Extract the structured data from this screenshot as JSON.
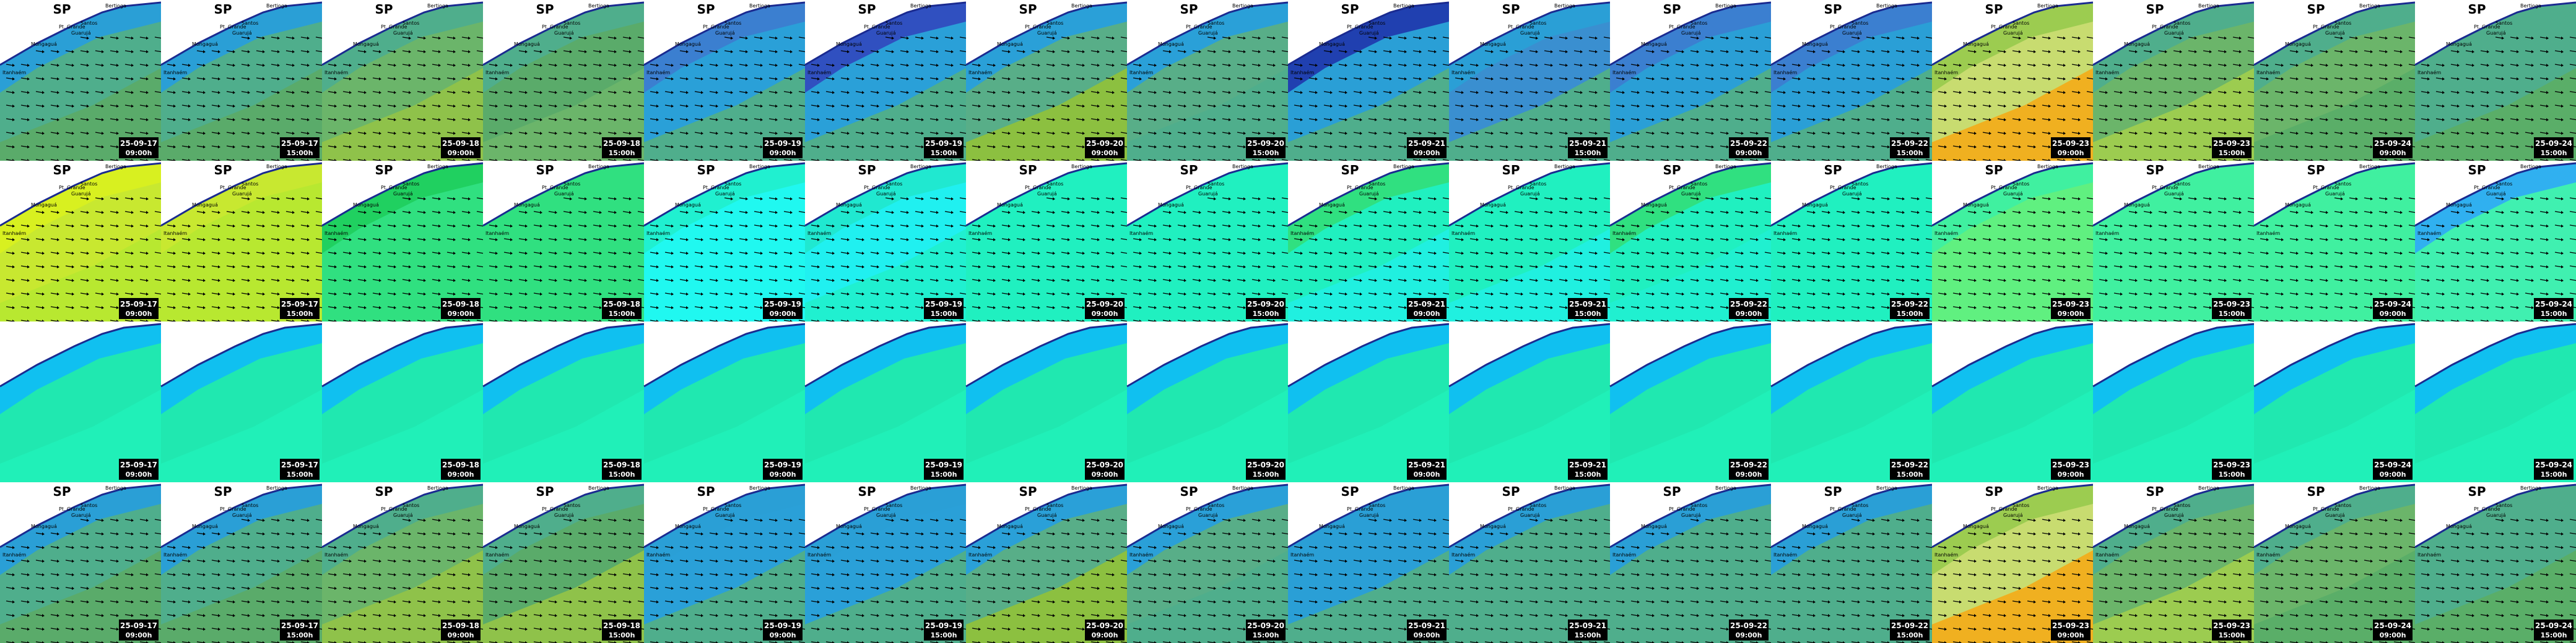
{
  "title": "SP",
  "map_labels": [
    "Bertioga",
    "Pt. Grande",
    "Santos",
    "Guarujá",
    "Mongaguá",
    "Itanhaém"
  ],
  "columns": [
    {
      "date": "25-09-17",
      "time": "09:00h"
    },
    {
      "date": "25-09-17",
      "time": "15:00h"
    },
    {
      "date": "25-09-18",
      "time": "09:00h"
    },
    {
      "date": "25-09-18",
      "time": "15:00h"
    },
    {
      "date": "25-09-19",
      "time": "09:00h"
    },
    {
      "date": "25-09-19",
      "time": "15:00h"
    },
    {
      "date": "25-09-20",
      "time": "09:00h"
    },
    {
      "date": "25-09-20",
      "time": "15:00h"
    },
    {
      "date": "25-09-21",
      "time": "09:00h"
    },
    {
      "date": "25-09-21",
      "time": "15:00h"
    },
    {
      "date": "25-09-22",
      "time": "09:00h"
    },
    {
      "date": "25-09-22",
      "time": "15:00h"
    },
    {
      "date": "25-09-23",
      "time": "09:00h"
    },
    {
      "date": "25-09-23",
      "time": "15:00h"
    },
    {
      "date": "25-09-24",
      "time": "09:00h"
    },
    {
      "date": "25-09-24",
      "time": "15:00h"
    }
  ],
  "rows": [
    {
      "arrows": true,
      "labels": true,
      "colors": [
        [
          "#5aab6a",
          "#4fae8c",
          "#2a9fd6"
        ],
        [
          "#5aab6a",
          "#4fae8c",
          "#2a9fd6"
        ],
        [
          "#8fc24a",
          "#6bb56a",
          "#4fae8c"
        ],
        [
          "#6bb56a",
          "#5aab6a",
          "#4fae8c"
        ],
        [
          "#4fae8c",
          "#2aa0d8",
          "#3b7fd0"
        ],
        [
          "#4fae8c",
          "#2aa0d8",
          "#3050c0"
        ],
        [
          "#8cc040",
          "#58ae88",
          "#2aa0d8"
        ],
        [
          "#4fae8c",
          "#58ae88",
          "#2aa0d8"
        ],
        [
          "#4fae8c",
          "#2a9fd6",
          "#2040b0"
        ],
        [
          "#4fae8c",
          "#3a8fd0",
          "#2a9fd6"
        ],
        [
          "#4fae8c",
          "#2a9fd6",
          "#3b7fd0"
        ],
        [
          "#4fae8c",
          "#2a9fd6",
          "#3b7fd0"
        ],
        [
          "#f0b020",
          "#c8dc70",
          "#9ccc50"
        ],
        [
          "#9ccc50",
          "#6bb56a",
          "#4fae8c"
        ],
        [
          "#5aae68",
          "#6bb56a",
          "#4fae8c"
        ],
        [
          "#5aae68",
          "#4fae8c",
          "#4fae8c"
        ]
      ]
    },
    {
      "arrows": true,
      "labels": true,
      "colors": [
        [
          "#b8e830",
          "#c8e830",
          "#d8f020"
        ],
        [
          "#b8e830",
          "#b8e830",
          "#c8e830"
        ],
        [
          "#30e080",
          "#30e080",
          "#20d060"
        ],
        [
          "#30e080",
          "#30e080",
          "#30e080"
        ],
        [
          "#20f8f0",
          "#20f8f0",
          "#20f0d0"
        ],
        [
          "#20f0d0",
          "#20f0f0",
          "#20e8d0"
        ],
        [
          "#20f0c0",
          "#20f0c0",
          "#20f0c0"
        ],
        [
          "#20f0c0",
          "#20f0c0",
          "#20f0c0"
        ],
        [
          "#20f0e0",
          "#20f0c0",
          "#30e080"
        ],
        [
          "#20f0e0",
          "#20f0c0",
          "#20f0c0"
        ],
        [
          "#20f0d0",
          "#20f0c0",
          "#30e080"
        ],
        [
          "#20f0c0",
          "#20f0c0",
          "#20f0c0"
        ],
        [
          "#60f080",
          "#60f080",
          "#40f0a0"
        ],
        [
          "#40f0a0",
          "#40f0a0",
          "#40f0a0"
        ],
        [
          "#40f0a0",
          "#40f0a0",
          "#40f0a0"
        ],
        [
          "#40f0b0",
          "#40f0b0",
          "#30b0f0"
        ]
      ]
    },
    {
      "arrows": false,
      "labels": false,
      "colors": [
        [
          "#20f0b8",
          "#20e8b0",
          "#10c0f0"
        ],
        [
          "#20f0b8",
          "#20e8b0",
          "#10c0f0"
        ],
        [
          "#20f0b8",
          "#20e8b0",
          "#10c0f0"
        ],
        [
          "#20f0b8",
          "#20e8b0",
          "#10c0f0"
        ],
        [
          "#20f0b8",
          "#20e8b0",
          "#10c0f0"
        ],
        [
          "#20f0b8",
          "#20e8b0",
          "#10c0f0"
        ],
        [
          "#20f0b8",
          "#20e8b0",
          "#10c0f0"
        ],
        [
          "#20f0b8",
          "#20e8b0",
          "#10c0f0"
        ],
        [
          "#20f0b8",
          "#20e8b0",
          "#10c0f0"
        ],
        [
          "#20f0b8",
          "#20e8b0",
          "#10c0f0"
        ],
        [
          "#20f0b8",
          "#20e8b0",
          "#10c0f0"
        ],
        [
          "#20f0b8",
          "#20e8b0",
          "#10c0f0"
        ],
        [
          "#20f0b8",
          "#20e8b0",
          "#10c0f0"
        ],
        [
          "#20f0b8",
          "#20e8b0",
          "#10c0f0"
        ],
        [
          "#20f0b8",
          "#20e8b0",
          "#10c0f0"
        ],
        [
          "#20f0b8",
          "#20e8b0",
          "#10c0f0"
        ]
      ]
    },
    {
      "arrows": true,
      "labels": true,
      "colors": [
        [
          "#5aab6a",
          "#4fae8c",
          "#2a9fd6"
        ],
        [
          "#5aab6a",
          "#4fae8c",
          "#2a9fd6"
        ],
        [
          "#8fc24a",
          "#6bb56a",
          "#4fae8c"
        ],
        [
          "#8fc24a",
          "#5aab6a",
          "#4fae8c"
        ],
        [
          "#4fae8c",
          "#2aa0d8",
          "#2a9fd6"
        ],
        [
          "#4fae8c",
          "#2aa0d8",
          "#2a9fd6"
        ],
        [
          "#8cc040",
          "#58ae88",
          "#2aa0d8"
        ],
        [
          "#4fae8c",
          "#58ae88",
          "#2aa0d8"
        ],
        [
          "#4fae8c",
          "#2a9fd6",
          "#2a9fd6"
        ],
        [
          "#4fae8c",
          "#4fae8c",
          "#2a9fd6"
        ],
        [
          "#4fae8c",
          "#4fae8c",
          "#2a9fd6"
        ],
        [
          "#4fae8c",
          "#4fae8c",
          "#2a9fd6"
        ],
        [
          "#f0b020",
          "#c8dc70",
          "#9ccc50"
        ],
        [
          "#9ccc50",
          "#6bb56a",
          "#4fae8c"
        ],
        [
          "#5aae68",
          "#6bb56a",
          "#4fae8c"
        ],
        [
          "#5aae68",
          "#4fae8c",
          "#4fae8c"
        ]
      ]
    }
  ]
}
